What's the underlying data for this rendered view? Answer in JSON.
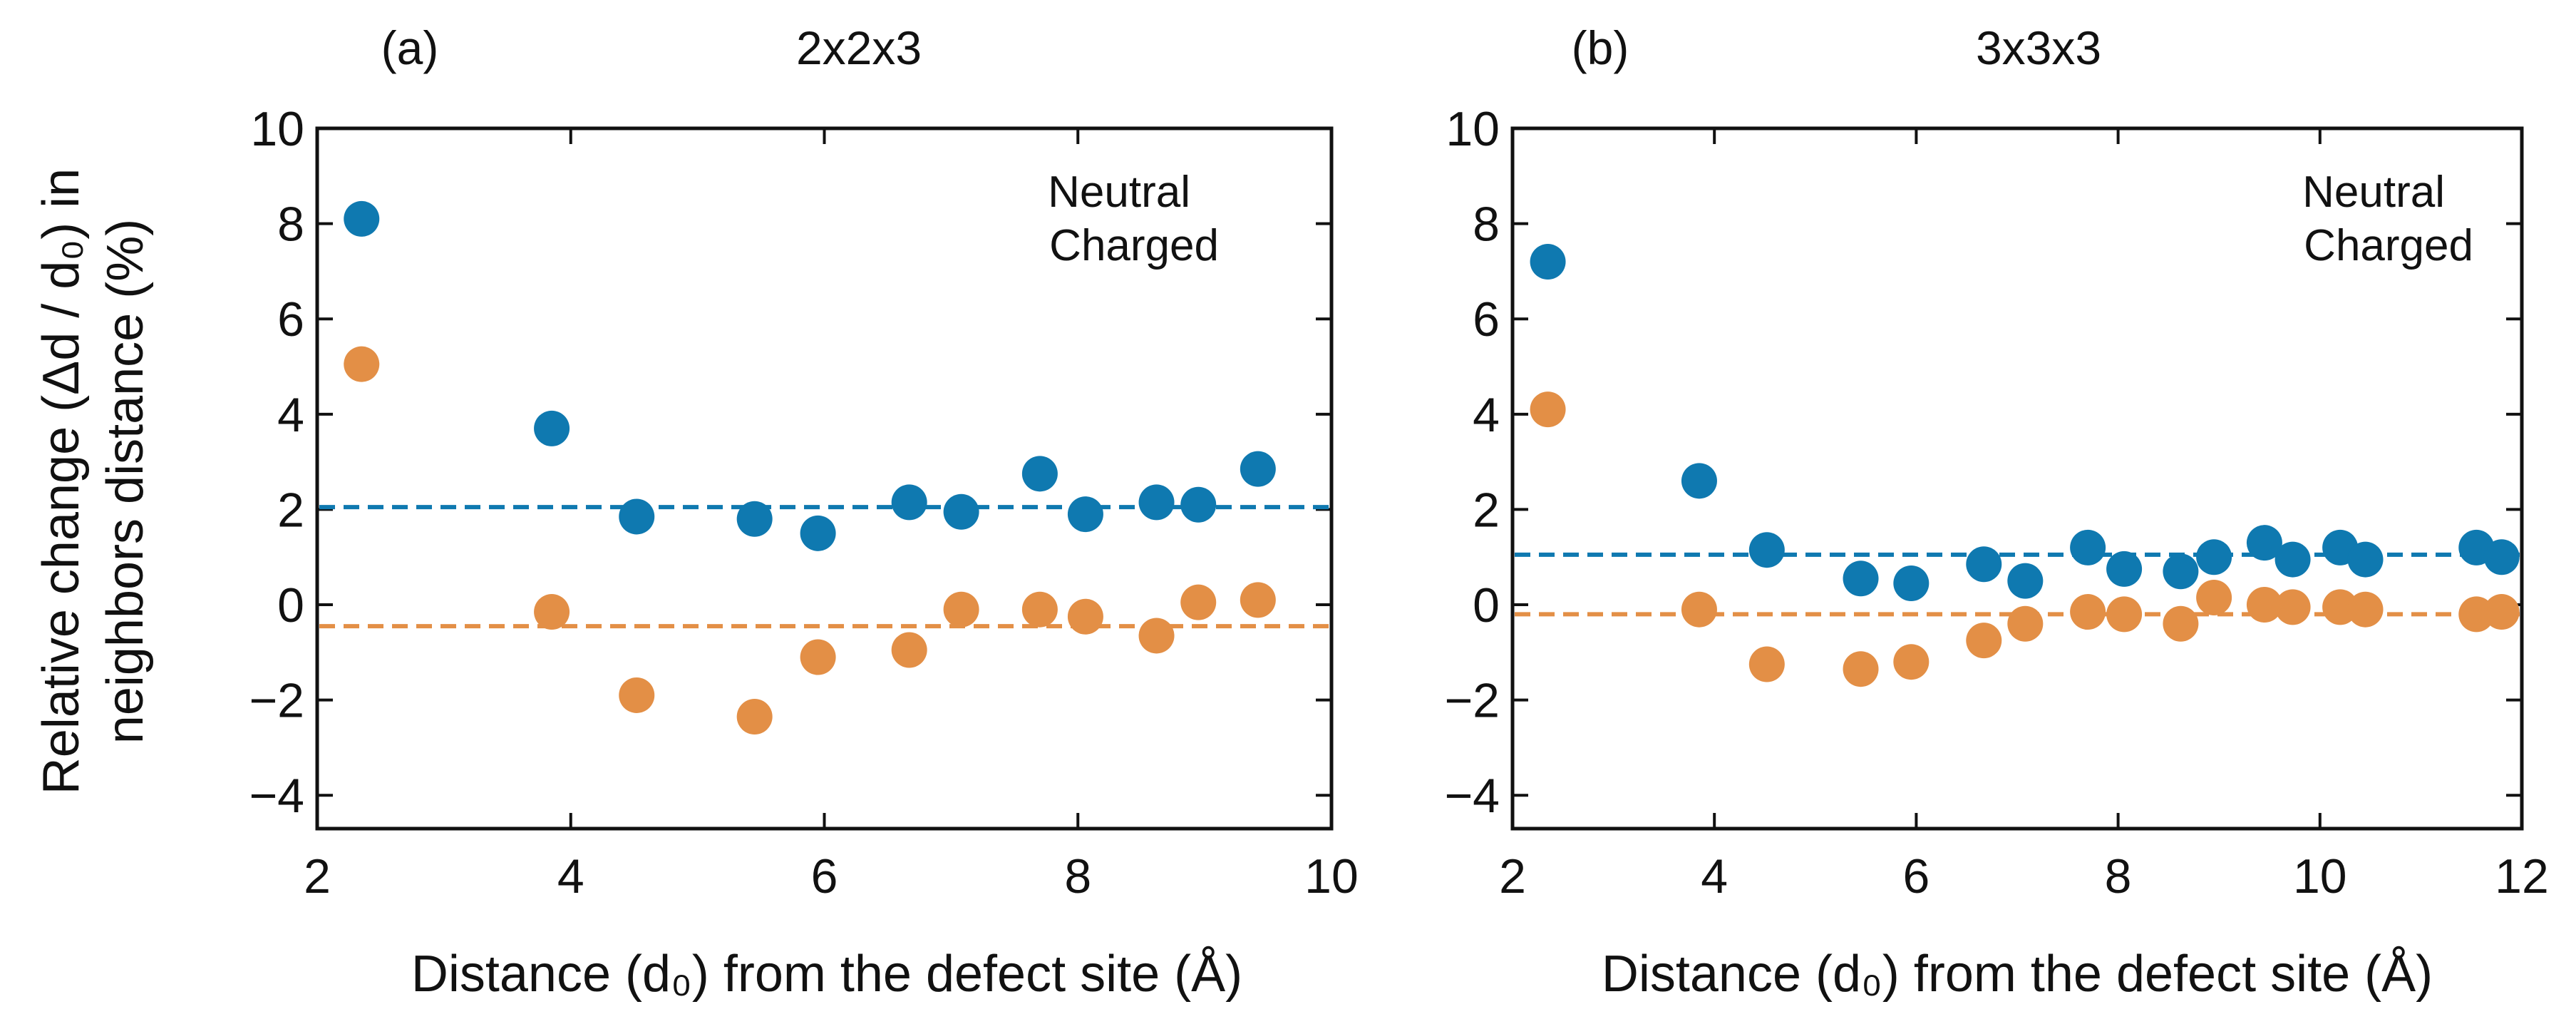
{
  "colors": {
    "neutral": "#E38F46",
    "charged": "#0F79B0",
    "axis": "#111111"
  },
  "y_axis_title_line1": "Relative change (Δd / d₀) in",
  "y_axis_title_line2": "neighbors distance (%)",
  "chart_data": [
    {
      "type": "scatter",
      "panel_label": "(a)",
      "title": "2x2x3",
      "xlabel": "Distance (d₀) from the defect site (Å)",
      "ylabel": "Relative change (Δd / d₀) in neighbors distance (%)",
      "xlim": [
        2,
        10
      ],
      "ylim": [
        -4.7,
        10
      ],
      "xticks": [
        2,
        4,
        6,
        8,
        10
      ],
      "yticks": [
        10,
        8,
        6,
        4,
        2,
        0,
        -2,
        -4
      ],
      "ytick_labels": [
        "10",
        "8",
        "6",
        "4",
        "2",
        "0",
        "−2",
        "−4"
      ],
      "legend": [
        "Neutral",
        "Charged"
      ],
      "legend_position": "top-right",
      "series": [
        {
          "name": "Charged",
          "color_key": "charged",
          "x": [
            2.35,
            3.85,
            4.52,
            5.45,
            5.95,
            6.67,
            7.08,
            7.7,
            8.06,
            8.62,
            8.95,
            9.42
          ],
          "y": [
            8.1,
            3.7,
            1.85,
            1.8,
            1.5,
            2.15,
            1.95,
            2.75,
            1.9,
            2.15,
            2.1,
            2.85
          ]
        },
        {
          "name": "Neutral",
          "color_key": "neutral",
          "x": [
            2.35,
            3.85,
            4.52,
            5.45,
            5.95,
            6.67,
            7.08,
            7.7,
            8.06,
            8.62,
            8.95,
            9.42
          ],
          "y": [
            5.05,
            -0.15,
            -1.9,
            -2.35,
            -1.1,
            -0.95,
            -0.1,
            -0.1,
            -0.25,
            -0.65,
            0.05,
            0.1
          ]
        }
      ],
      "reference_lines": [
        {
          "name": "Charged mean",
          "color_key": "charged",
          "y": 2.05
        },
        {
          "name": "Neutral mean",
          "color_key": "neutral",
          "y": -0.45
        }
      ]
    },
    {
      "type": "scatter",
      "panel_label": "(b)",
      "title": "3x3x3",
      "xlabel": "Distance (d₀) from the defect site (Å)",
      "ylabel": "Relative change (Δd / d₀) in neighbors distance (%)",
      "xlim": [
        2,
        12
      ],
      "ylim": [
        -4.7,
        10
      ],
      "xticks": [
        2,
        4,
        6,
        8,
        10,
        12
      ],
      "yticks": [
        10,
        8,
        6,
        4,
        2,
        0,
        -2,
        -4
      ],
      "ytick_labels": [
        "10",
        "8",
        "6",
        "4",
        "2",
        "0",
        "−2",
        "−4"
      ],
      "legend": [
        "Neutral",
        "Charged"
      ],
      "legend_position": "top-right",
      "series": [
        {
          "name": "Charged",
          "color_key": "charged",
          "x": [
            2.35,
            3.85,
            4.52,
            5.45,
            5.95,
            6.67,
            7.08,
            7.7,
            8.06,
            8.62,
            8.95,
            9.45,
            9.73,
            10.2,
            10.45,
            11.55,
            11.8
          ],
          "y": [
            7.2,
            2.6,
            1.15,
            0.55,
            0.45,
            0.85,
            0.5,
            1.2,
            0.75,
            0.7,
            1.0,
            1.3,
            0.95,
            1.2,
            0.95,
            1.2,
            1.0
          ]
        },
        {
          "name": "Neutral",
          "color_key": "neutral",
          "x": [
            2.35,
            3.85,
            4.52,
            5.45,
            5.95,
            6.67,
            7.08,
            7.7,
            8.06,
            8.62,
            8.95,
            9.45,
            9.73,
            10.2,
            10.45,
            11.55,
            11.8
          ],
          "y": [
            4.1,
            -0.1,
            -1.25,
            -1.35,
            -1.2,
            -0.75,
            -0.4,
            -0.15,
            -0.2,
            -0.4,
            0.15,
            0.0,
            -0.05,
            -0.05,
            -0.1,
            -0.2,
            -0.15
          ]
        }
      ],
      "reference_lines": [
        {
          "name": "Charged mean",
          "color_key": "charged",
          "y": 1.05
        },
        {
          "name": "Neutral mean",
          "color_key": "neutral",
          "y": -0.2
        }
      ]
    }
  ]
}
